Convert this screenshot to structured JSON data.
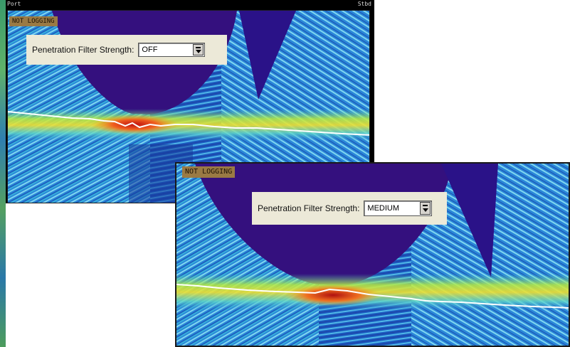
{
  "window1": {
    "port_label": "Port",
    "stbd_label": "Stbd",
    "logging_badge": "NOT LOGGING",
    "filter_label": "Penetration Filter Strength:",
    "filter_value": "OFF"
  },
  "window2": {
    "logging_badge": "NOT LOGGING",
    "filter_label": "Penetration Filter Strength:",
    "filter_value": "MEDIUM"
  },
  "colors": {
    "water_column": "#34107e",
    "bottom_return": "#2e7bd6",
    "high_intensity": "#d0201a",
    "bottom_trace": "#ffffff",
    "badge": "#9a7a44",
    "dialog_bg": "#ece9d8"
  },
  "icons": [
    "dropdown-arrow-icon"
  ]
}
